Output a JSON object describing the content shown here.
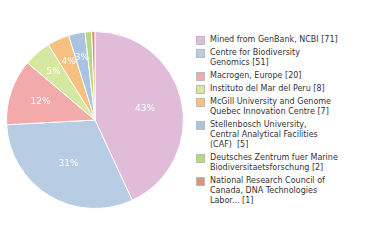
{
  "chart_data": {
    "type": "pie",
    "categories": [
      "Mined from GenBank, NCBI [71]",
      "Centre for Biodiversity\nGenomics [51]",
      "Macrogen, Europe [20]",
      "Instituto del Mar del Peru [8]",
      "McGill University and Genome\nQuebec Innovation Centre [7]",
      "Stellenbosch University,\nCentral Analytical Facilities\n(CAF)  [5]",
      "Deutsches Zentrum fuer Marine\nBiodiversitaetsforschung [2]",
      "National Research Council of\nCanada, DNA Technologies\nLabor... [1]"
    ],
    "values": [
      43,
      31,
      12,
      5,
      4,
      3,
      1.2,
      0.6
    ],
    "value_labels": [
      "43%",
      "31%",
      "12%",
      "5%",
      "4%",
      "3%",
      null,
      null
    ],
    "data_labels": true,
    "colors": [
      "#e0bcd8",
      "#b8cce4",
      "#f2aaaa",
      "#d4e8a0",
      "#f5c080",
      "#a8c4e0",
      "#b8d880",
      "#e09080"
    ],
    "legend": "right"
  }
}
